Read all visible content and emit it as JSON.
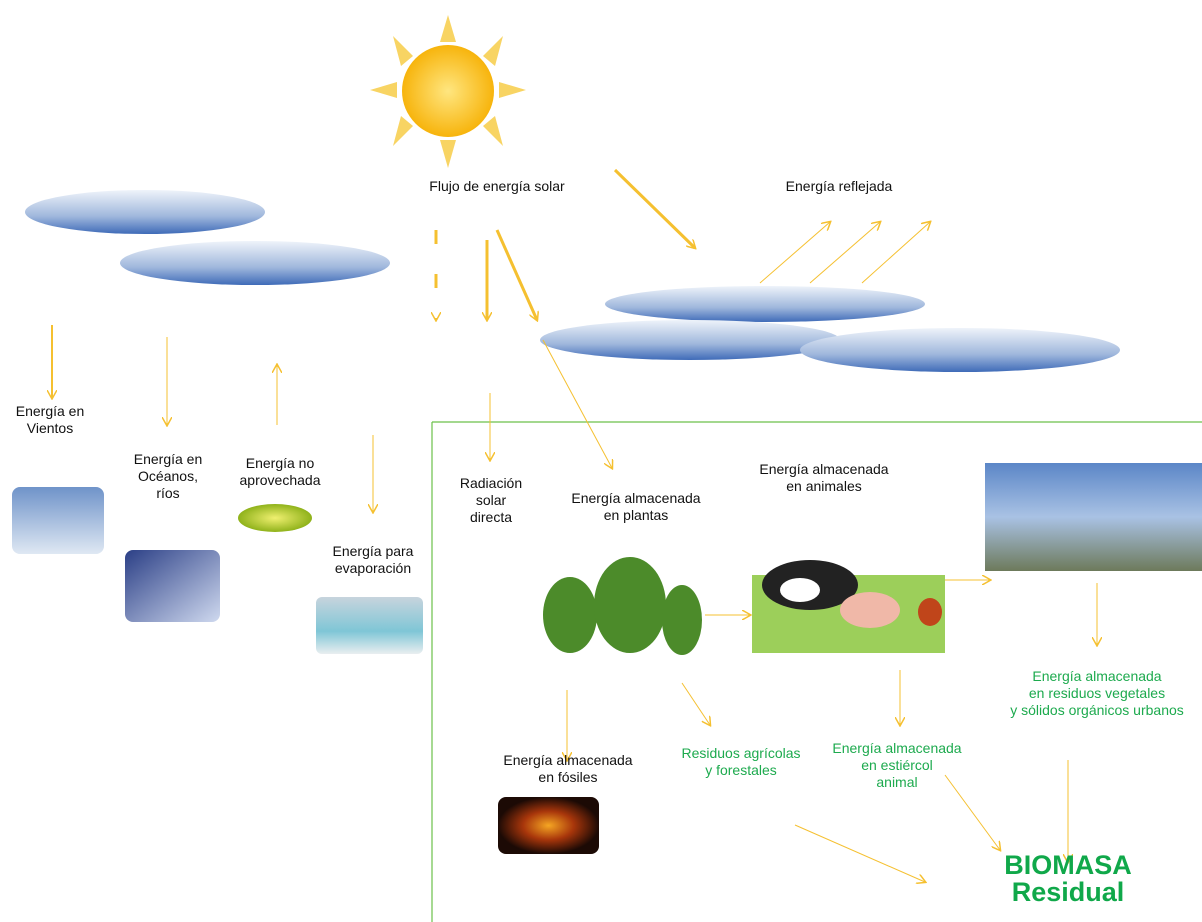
{
  "labels": [
    [
      "Flujo de energía solar"
    ],
    [
      "Energía reflejada"
    ],
    [
      "Energía en",
      "Vientos"
    ],
    [
      "Energía en",
      "Océanos,",
      "ríos"
    ],
    [
      "Energía no",
      "aprovechada"
    ],
    [
      "Energía para",
      "evaporación"
    ],
    [
      "Radiación",
      "solar",
      "directa"
    ],
    [
      "Energía almacenada",
      "en plantas"
    ],
    [
      "Energía almacenada",
      "en animales"
    ],
    [
      "Energía almacenada",
      "en residuos vegetales",
      "y sólidos orgánicos urbanos"
    ],
    [
      "Energía almacenada",
      "en estiércol",
      "animal"
    ],
    [
      "Residuos agrícolas",
      "y forestales"
    ],
    [
      "Energía almacenada",
      "en fósiles"
    ],
    [
      "BIOMASA",
      "Residual"
    ]
  ]
}
